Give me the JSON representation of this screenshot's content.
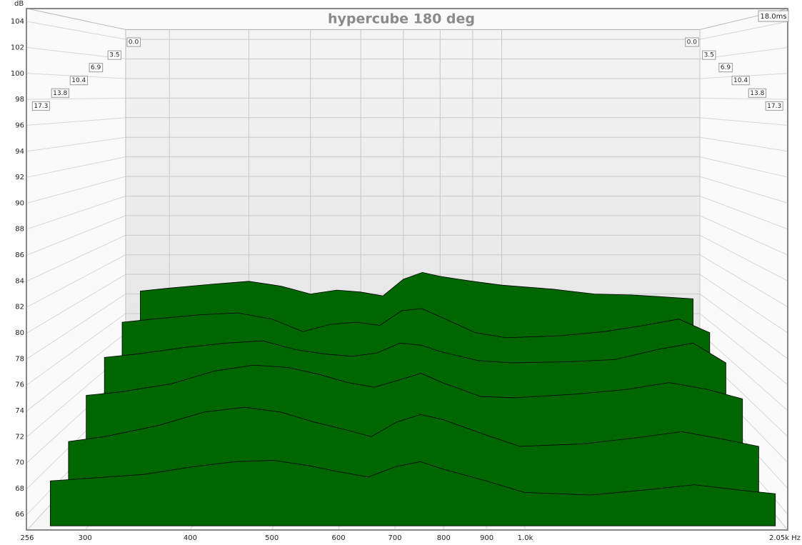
{
  "chart_data": {
    "type": "waterfall",
    "title": "hypercube 180 deg",
    "ylabel": "dB",
    "zlabel": "18.0ms",
    "xscale": "log",
    "grid": true,
    "color": "#006600",
    "xlim": [
      256,
      2050
    ],
    "xticks": [
      256,
      300,
      400,
      500,
      600,
      700,
      800,
      900,
      {
        "value": 1000,
        "label": "1.0k"
      },
      {
        "value": 2050,
        "label": "2.05k Hz"
      }
    ],
    "ylim": [
      64.8,
      105
    ],
    "yticks": [
      66,
      68,
      70,
      72,
      74,
      76,
      78,
      80,
      82,
      84,
      86,
      88,
      90,
      92,
      94,
      96,
      98,
      100,
      102,
      104
    ],
    "zlim": [
      0,
      18
    ],
    "zticks": [
      {
        "value": 0,
        "label": "0.0"
      },
      3.5,
      6.9,
      10.4,
      13.8,
      17.3
    ],
    "x": [
      270,
      300,
      350,
      400,
      450,
      500,
      550,
      600,
      650,
      700,
      750,
      800,
      900,
      1000,
      1200,
      1400,
      1600,
      1800,
      2000
    ],
    "series": [
      {
        "z": 0,
        "values": [
          78.3,
          78.6,
          79.0,
          79.3,
          78.8,
          78.0,
          78.4,
          78.2,
          77.8,
          79.5,
          80.2,
          79.8,
          79.3,
          78.9,
          78.5,
          78.0,
          77.9,
          77.7,
          77.5
        ]
      },
      {
        "z": 3.5,
        "values": [
          76.5,
          76.8,
          77.2,
          77.4,
          76.8,
          75.6,
          76.3,
          76.5,
          76.2,
          77.6,
          77.8,
          77.0,
          75.5,
          75.0,
          75.2,
          75.6,
          76.2,
          76.8,
          75.5
        ]
      },
      {
        "z": 6.9,
        "values": [
          74.5,
          74.8,
          75.4,
          75.8,
          76.0,
          75.2,
          74.8,
          74.6,
          74.9,
          75.8,
          75.6,
          75.0,
          74.2,
          74.0,
          74.1,
          74.3,
          75.2,
          75.8,
          74.0
        ]
      },
      {
        "z": 10.4,
        "values": [
          72.5,
          72.8,
          73.5,
          74.6,
          75.1,
          74.9,
          74.3,
          73.6,
          73.2,
          73.8,
          74.4,
          73.6,
          72.4,
          72.3,
          72.6,
          73.0,
          73.6,
          73.0,
          72.2
        ]
      },
      {
        "z": 13.8,
        "values": [
          70.0,
          70.4,
          71.3,
          72.4,
          72.8,
          72.4,
          71.6,
          71.0,
          70.4,
          71.6,
          72.2,
          71.8,
          70.6,
          69.6,
          69.8,
          70.3,
          70.8,
          70.2,
          69.6
        ]
      },
      {
        "z": 17.3,
        "values": [
          68.3,
          68.5,
          68.8,
          69.4,
          69.8,
          69.9,
          69.5,
          69.0,
          68.6,
          69.4,
          69.8,
          69.2,
          68.3,
          67.4,
          67.2,
          67.6,
          68.0,
          67.6,
          67.3
        ]
      }
    ]
  }
}
